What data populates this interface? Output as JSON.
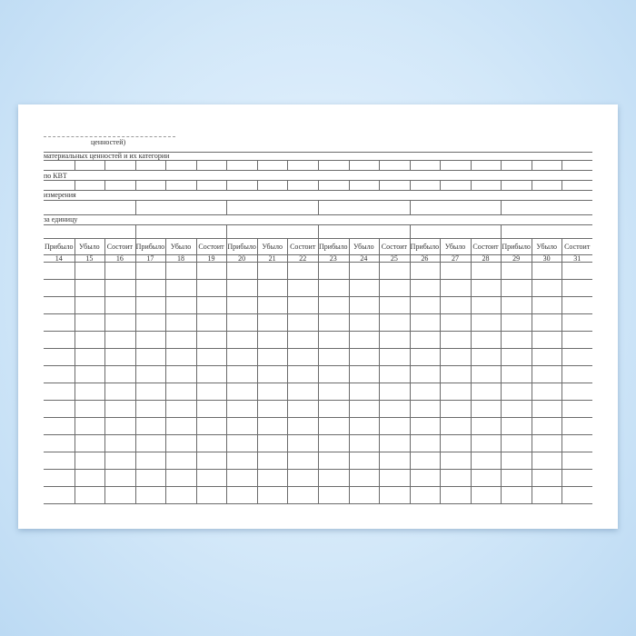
{
  "form": {
    "caption_values": "ценностей)",
    "row_category": "материальных ценностей и их категории",
    "row_kvt": "по КВТ",
    "row_unit": "измерения",
    "row_price": "за единицу",
    "column_headers": [
      "Прибыло",
      "Убыло",
      "Состоит",
      "Прибыло",
      "Убыло",
      "Состоит",
      "Прибыло",
      "Убыло",
      "Состоит",
      "Прибыло",
      "Убыло",
      "Состоит",
      "Прибыло",
      "Убыло",
      "Состоит",
      "Прибыло",
      "Убыло",
      "Состоит"
    ],
    "column_numbers": [
      "14",
      "15",
      "16",
      "17",
      "18",
      "19",
      "20",
      "21",
      "22",
      "23",
      "24",
      "25",
      "26",
      "27",
      "28",
      "29",
      "30",
      "31"
    ],
    "data_row_count": 14
  },
  "colors": {
    "background": "#d3e8f9",
    "paper": "#ffffff",
    "lines": "#6b6b6b"
  }
}
